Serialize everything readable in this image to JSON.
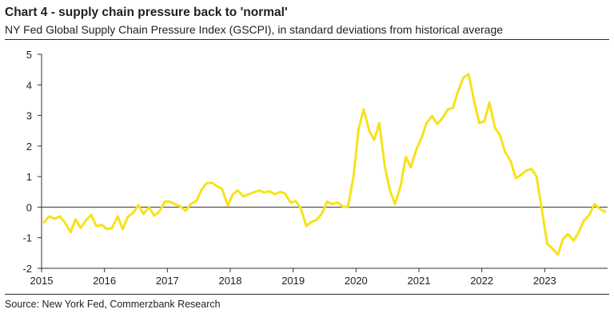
{
  "header": {
    "title": "Chart 4 - supply chain pressure back to 'normal'",
    "subtitle": "NY Fed Global Supply Chain Pressure Index (GSCPI), in standard deviations from historical average"
  },
  "footer": {
    "source": "Source: New York Fed, Commerzbank Research"
  },
  "chart_data": {
    "type": "line",
    "title": "",
    "xlabel": "",
    "ylabel": "",
    "ylim": [
      -2,
      5
    ],
    "xlim": [
      2015.0,
      2024.0
    ],
    "yticks": [
      "5",
      "4",
      "3",
      "2",
      "1",
      "0",
      "-1",
      "-2"
    ],
    "xticks": [
      "2015",
      "2016",
      "2017",
      "2018",
      "2019",
      "2020",
      "2021",
      "2022",
      "2023"
    ],
    "grid": false,
    "zero_line": true,
    "line_color": "#f7e21b",
    "series": [
      {
        "name": "",
        "x": [
          2015.04,
          2015.12,
          2015.21,
          2015.29,
          2015.37,
          2015.46,
          2015.54,
          2015.62,
          2015.71,
          2015.79,
          2015.87,
          2015.96,
          2016.04,
          2016.12,
          2016.21,
          2016.29,
          2016.37,
          2016.46,
          2016.54,
          2016.62,
          2016.71,
          2016.79,
          2016.87,
          2016.96,
          2017.04,
          2017.12,
          2017.21,
          2017.29,
          2017.37,
          2017.46,
          2017.54,
          2017.62,
          2017.71,
          2017.79,
          2017.87,
          2017.96,
          2018.04,
          2018.12,
          2018.21,
          2018.29,
          2018.37,
          2018.46,
          2018.54,
          2018.62,
          2018.71,
          2018.79,
          2018.87,
          2018.96,
          2019.04,
          2019.12,
          2019.21,
          2019.29,
          2019.37,
          2019.46,
          2019.54,
          2019.62,
          2019.71,
          2019.79,
          2019.87,
          2019.96,
          2020.04,
          2020.12,
          2020.21,
          2020.29,
          2020.37,
          2020.46,
          2020.54,
          2020.62,
          2020.71,
          2020.79,
          2020.87,
          2020.96,
          2021.04,
          2021.12,
          2021.21,
          2021.29,
          2021.37,
          2021.46,
          2021.54,
          2021.62,
          2021.71,
          2021.79,
          2021.87,
          2021.96,
          2022.04,
          2022.12,
          2022.21,
          2022.29,
          2022.37,
          2022.46,
          2022.54,
          2022.62,
          2022.71,
          2022.79,
          2022.87,
          2022.96,
          2023.04,
          2023.12,
          2023.21,
          2023.29,
          2023.37,
          2023.46,
          2023.54,
          2023.62,
          2023.71,
          2023.79,
          2023.87,
          2023.96
        ],
        "values": [
          -0.5,
          -0.3,
          -0.38,
          -0.3,
          -0.5,
          -0.82,
          -0.4,
          -0.68,
          -0.42,
          -0.25,
          -0.62,
          -0.58,
          -0.72,
          -0.68,
          -0.3,
          -0.72,
          -0.32,
          -0.18,
          0.07,
          -0.22,
          0.0,
          -0.28,
          -0.15,
          0.18,
          0.18,
          0.1,
          0.02,
          -0.12,
          0.1,
          0.2,
          0.55,
          0.78,
          0.8,
          0.68,
          0.6,
          0.05,
          0.42,
          0.55,
          0.35,
          0.42,
          0.48,
          0.55,
          0.48,
          0.52,
          0.42,
          0.5,
          0.45,
          0.15,
          0.2,
          -0.02,
          -0.62,
          -0.48,
          -0.42,
          -0.2,
          0.18,
          0.1,
          0.15,
          0.02,
          0.0,
          1.0,
          2.55,
          3.2,
          2.5,
          2.2,
          2.75,
          1.3,
          0.55,
          0.1,
          0.7,
          1.65,
          1.3,
          1.9,
          2.25,
          2.75,
          2.98,
          2.72,
          2.9,
          3.2,
          3.25,
          3.78,
          4.25,
          4.35,
          3.55,
          2.75,
          2.8,
          3.42,
          2.6,
          2.35,
          1.8,
          1.5,
          0.95,
          1.05,
          1.2,
          1.25,
          1.0,
          -0.15,
          -1.2,
          -1.35,
          -1.55,
          -1.05,
          -0.88,
          -1.1,
          -0.82,
          -0.45,
          -0.25,
          0.1,
          -0.05,
          -0.15
        ]
      }
    ]
  }
}
